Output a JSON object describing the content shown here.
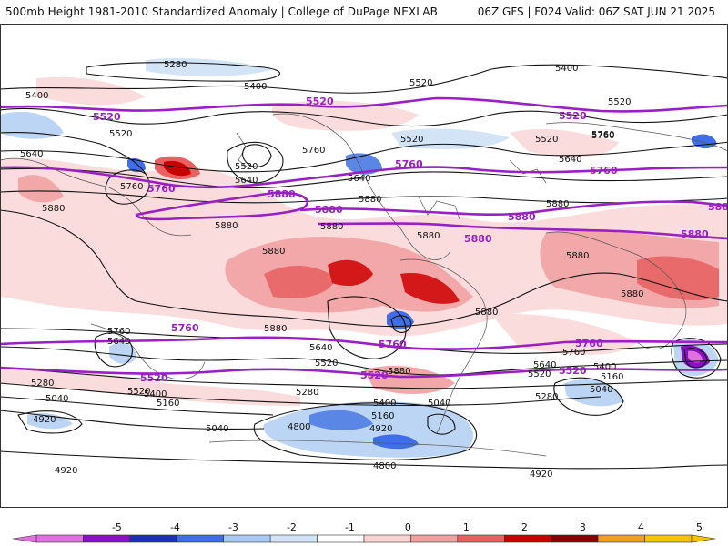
{
  "header": {
    "title": "500mb Height 1981-2010 Standardized Anomaly | College of DuPage NEXLAB",
    "run_info": "06Z GFS | F024 Valid: 06Z SAT JUN 21 2025"
  },
  "colorbar": {
    "ticks": [
      "-5",
      "-4",
      "-3",
      "-2",
      "-1",
      "0",
      "1",
      "2",
      "3",
      "4",
      "5"
    ],
    "colors": [
      "#e070e0",
      "#8a10c8",
      "#1c2fb8",
      "#3f6ee8",
      "#a9c9f2",
      "#d3e4f7",
      "#ffffff",
      "#f9d3d3",
      "#f0a0a0",
      "#e86060",
      "#c80000",
      "#8a0000",
      "#f0a020",
      "#f5c400"
    ]
  },
  "map": {
    "contour_labels": [
      {
        "text": "5280"
      },
      {
        "text": "5400"
      },
      {
        "text": "5400"
      },
      {
        "text": "5400"
      },
      {
        "text": "5520"
      },
      {
        "text": "5520"
      },
      {
        "text": "5520"
      },
      {
        "text": "5520"
      },
      {
        "text": "5640"
      },
      {
        "text": "5640"
      },
      {
        "text": "5640"
      },
      {
        "text": "5760"
      },
      {
        "text": "5760"
      },
      {
        "text": "5760"
      },
      {
        "text": "5880"
      },
      {
        "text": "5880"
      },
      {
        "text": "5880"
      },
      {
        "text": "5880"
      },
      {
        "text": "5880"
      },
      {
        "text": "5880"
      },
      {
        "text": "5880"
      },
      {
        "text": "5880"
      },
      {
        "text": "5760"
      },
      {
        "text": "5640"
      },
      {
        "text": "5640"
      },
      {
        "text": "5760"
      },
      {
        "text": "5640"
      },
      {
        "text": "5520"
      },
      {
        "text": "5400"
      },
      {
        "text": "5160"
      },
      {
        "text": "5040"
      },
      {
        "text": "5280"
      },
      {
        "text": "5520"
      },
      {
        "text": "5400"
      },
      {
        "text": "5160"
      },
      {
        "text": "5280"
      },
      {
        "text": "5040"
      },
      {
        "text": "4920"
      },
      {
        "text": "5040"
      },
      {
        "text": "4800"
      },
      {
        "text": "5160"
      },
      {
        "text": "4920"
      },
      {
        "text": "5400"
      },
      {
        "text": "5040"
      },
      {
        "text": "4800"
      },
      {
        "text": "4920"
      },
      {
        "text": "4920"
      },
      {
        "text": "5280"
      },
      {
        "text": "5520"
      },
      {
        "text": "5880"
      },
      {
        "text": "5520"
      },
      {
        "text": "5640"
      },
      {
        "text": "5520"
      },
      {
        "text": "5880"
      },
      {
        "text": "5760"
      },
      {
        "text": "5880"
      },
      {
        "text": "5880"
      }
    ],
    "reference_labels": [
      {
        "text": "5520"
      },
      {
        "text": "5520"
      },
      {
        "text": "5520"
      },
      {
        "text": "5760"
      },
      {
        "text": "5760"
      },
      {
        "text": "5760"
      },
      {
        "text": "5880"
      },
      {
        "text": "5880"
      },
      {
        "text": "5880"
      },
      {
        "text": "5880"
      },
      {
        "text": "5880"
      },
      {
        "text": "5760"
      },
      {
        "text": "5760"
      },
      {
        "text": "5760"
      },
      {
        "text": "5520"
      },
      {
        "text": "5520"
      },
      {
        "text": "5520"
      },
      {
        "text": "5880"
      }
    ]
  }
}
